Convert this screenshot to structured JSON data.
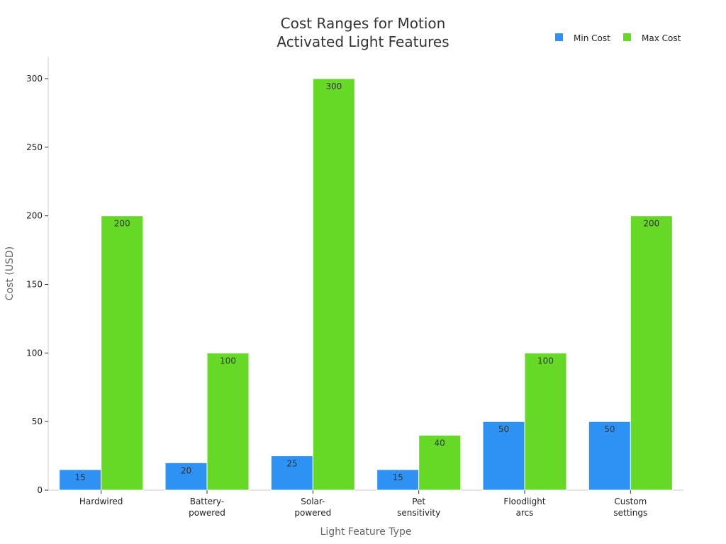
{
  "chart_data": {
    "type": "bar",
    "title": [
      "Cost Ranges for Motion",
      "Activated Light Features"
    ],
    "xlabel": "Light Feature Type",
    "ylabel": "Cost (USD)",
    "ylim": [
      0,
      315
    ],
    "yticks": [
      0,
      50,
      100,
      150,
      200,
      250,
      300
    ],
    "categories": [
      [
        "Hardwired"
      ],
      [
        "Battery-",
        "powered"
      ],
      [
        "Solar-",
        "powered"
      ],
      [
        "Pet",
        "sensitivity"
      ],
      [
        "Floodlight",
        "arcs"
      ],
      [
        "Custom",
        "settings"
      ]
    ],
    "series": [
      {
        "name": "Min Cost",
        "color": "#2e92f5",
        "values": [
          15,
          20,
          25,
          15,
          50,
          50
        ]
      },
      {
        "name": "Max Cost",
        "color": "#66d926",
        "values": [
          200,
          100,
          300,
          40,
          100,
          200
        ]
      }
    ],
    "legend": "top-right",
    "grid": false
  }
}
